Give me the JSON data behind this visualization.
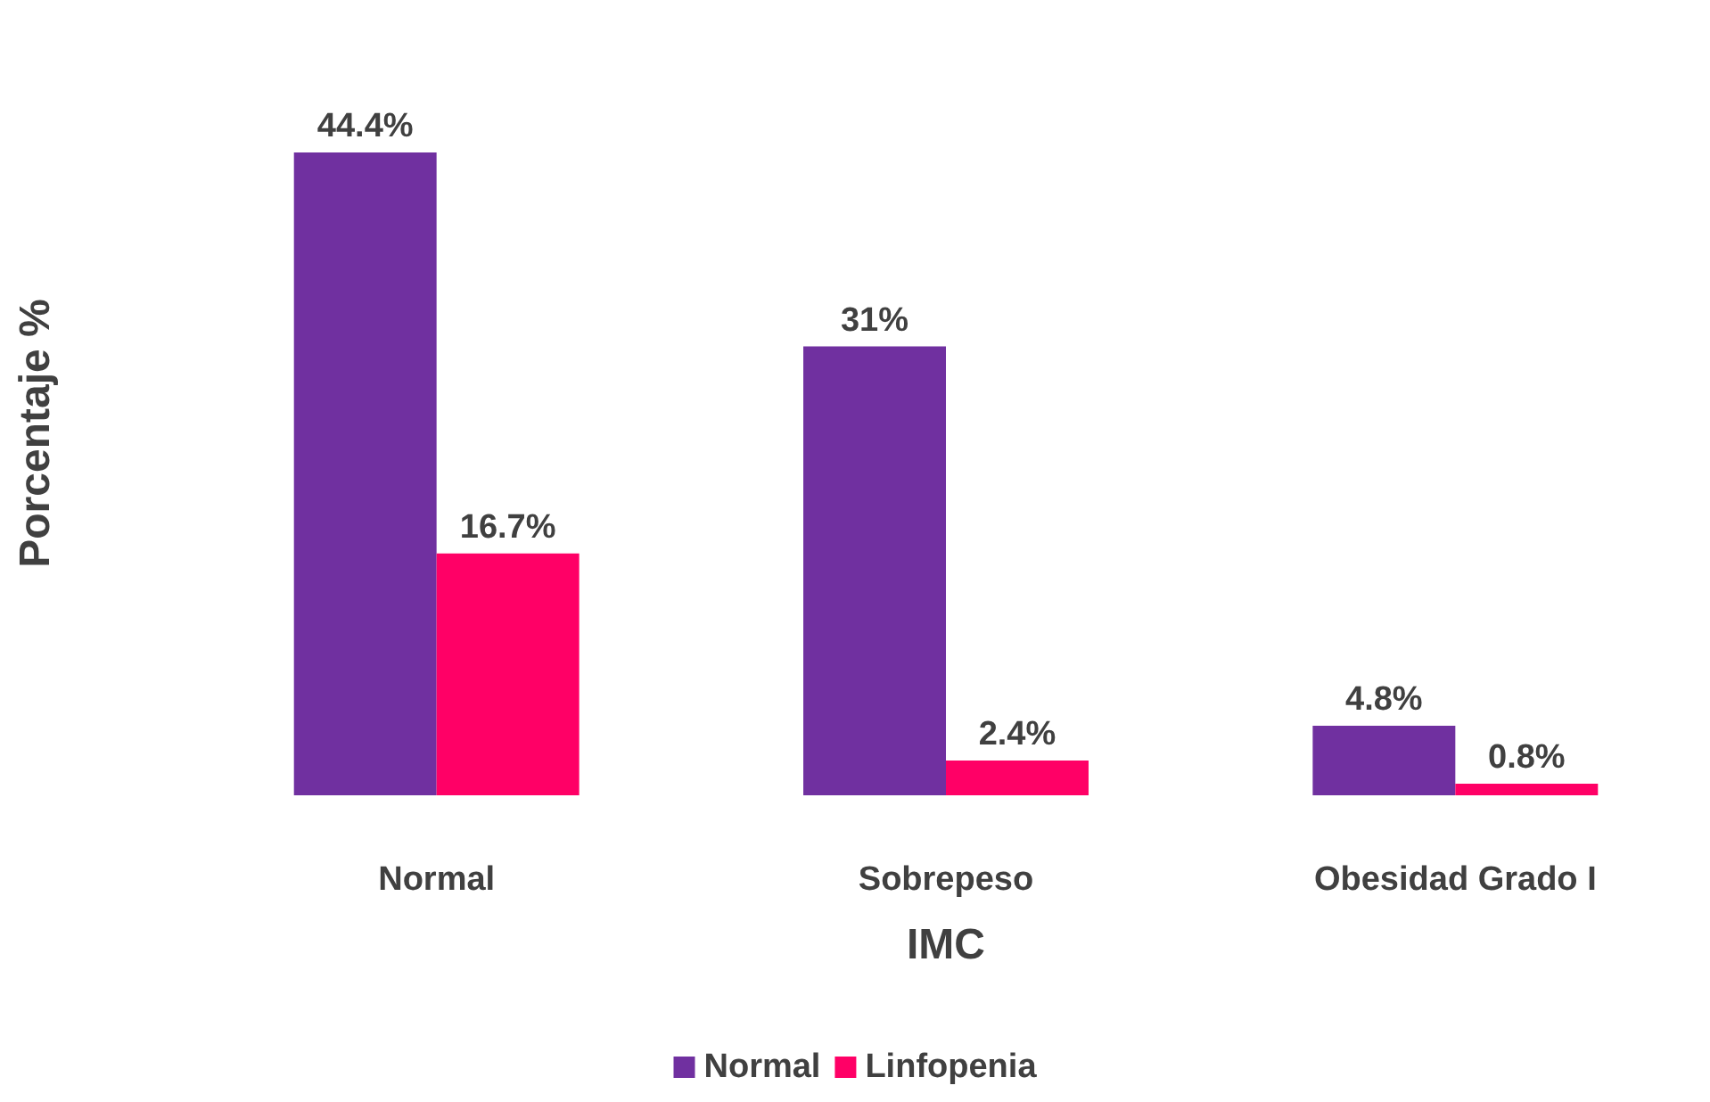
{
  "chart_data": {
    "type": "bar",
    "xlabel": "IMC",
    "ylabel": "Porcentaje %",
    "categories": [
      "Normal",
      "Sobrepeso",
      "Obesidad Grado I"
    ],
    "series": [
      {
        "name": "Normal",
        "color": "#7030a0",
        "values": [
          44.4,
          31,
          4.8
        ],
        "value_labels": [
          "44.4%",
          "31%",
          "4.8%"
        ]
      },
      {
        "name": "Linfopenia",
        "color": "#ff0066",
        "values": [
          16.7,
          2.4,
          0.8
        ],
        "value_labels": [
          "16.7%",
          "2.4%",
          "0.8%"
        ]
      }
    ],
    "grid": false,
    "legend": "bottom"
  }
}
